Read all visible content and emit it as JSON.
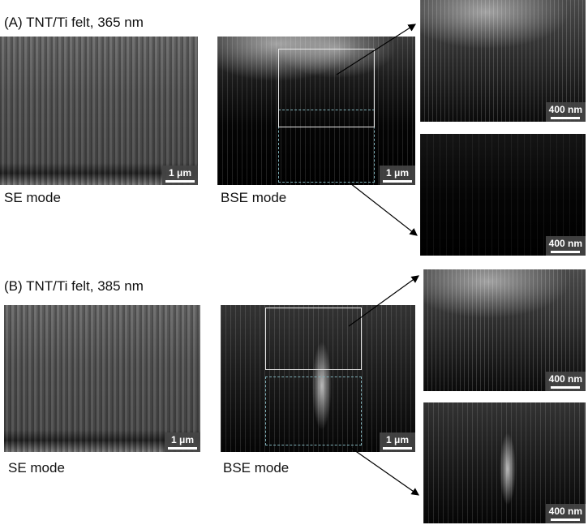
{
  "panel_a": {
    "title": "(A) TNT/Ti felt, 365 nm",
    "se_label": "SE mode",
    "bse_label": "BSE mode",
    "scale_main": "1 μm",
    "scale_zoom": "400 nm"
  },
  "panel_b": {
    "title": "(B) TNT/Ti felt, 385 nm",
    "se_label": "SE mode",
    "bse_label": "BSE mode",
    "scale_main": "1 μm",
    "scale_zoom": "400 nm"
  },
  "colors": {
    "solid_box": "#e8e8e8",
    "dashed_box": "#7fb0b8"
  }
}
